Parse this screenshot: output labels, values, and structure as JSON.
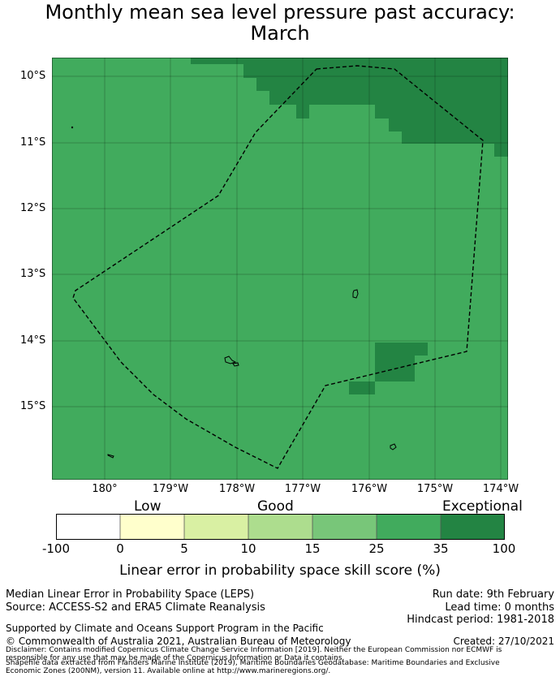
{
  "title": {
    "line1": "Monthly mean sea level pressure past accuracy:",
    "line2": "March"
  },
  "map": {
    "lat_labels": [
      "10°S",
      "11°S",
      "12°S",
      "13°S",
      "14°S",
      "15°S"
    ],
    "lon_labels": [
      "180°",
      "179°W",
      "178°W",
      "177°W",
      "176°W",
      "175°W",
      "174°W"
    ],
    "colors": {
      "good_plus": "#41ab5d",
      "exceptional": "#238443",
      "eez_boundary": "#000000"
    }
  },
  "colorbar": {
    "categories": {
      "low": "Low",
      "good": "Good",
      "exceptional": "Exceptional"
    },
    "ticks": [
      "-100",
      "0",
      "5",
      "10",
      "15",
      "25",
      "35",
      "100"
    ],
    "bin_colors": [
      "#ffffff",
      "#ffffcc",
      "#d9f0a3",
      "#addd8e",
      "#78c679",
      "#41ab5d",
      "#238443"
    ],
    "label": "Linear error in probability space skill score (%)"
  },
  "info": {
    "metric": "Median Linear Error in Probability Space (LEPS)",
    "source": "Source: ACCESS-S2 and ERA5 Climate Reanalysis",
    "support": "Supported by Climate and Oceans Support Program in the Pacific",
    "copyright": "© Commonwealth of Australia 2021, Australian Bureau of Meteorology",
    "run_date": "Run date: 9th February",
    "lead_time": "Lead time: 0 months",
    "hindcast": "Hindcast period: 1981-2018",
    "created": "Created: 27/10/2021",
    "disclaimer": "Disclaimer: Contains modified Copernicus Climate Change Service Information [2019]. Neither the European Commission nor ECMWF is responsible for any use that may be made of the Copernicus Information or Data it contains.",
    "shapefile": "Shapefile data extracted from Flanders Marine Institute (2019), Maritime Boundaries Geodatabase: Maritime Boundaries and Exclusive Economic Zones (200NM), version 11. Available online at http://www.marineregions.org/."
  }
}
